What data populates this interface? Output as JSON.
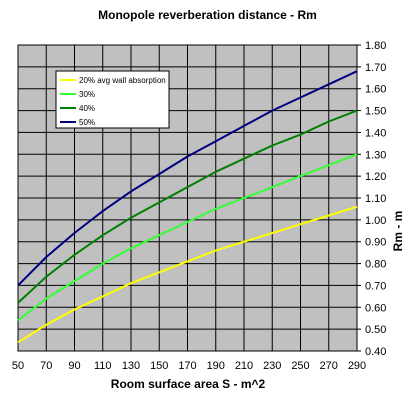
{
  "chart_data": {
    "type": "line",
    "title": "Monopole reverberation distance - Rm",
    "xlabel": "Room surface area S - m^2",
    "ylabel": "Rm - m",
    "x": [
      50,
      70,
      90,
      110,
      130,
      150,
      170,
      190,
      210,
      230,
      250,
      270,
      290
    ],
    "x_ticks": [
      "50",
      "70",
      "90",
      "110",
      "130",
      "150",
      "170",
      "190",
      "210",
      "230",
      "250",
      "270",
      "290"
    ],
    "y_ticks": [
      "0.40",
      "0.50",
      "0.60",
      "0.70",
      "0.80",
      "0.90",
      "1.00",
      "1.10",
      "1.20",
      "1.30",
      "1.40",
      "1.50",
      "1.60",
      "1.70",
      "1.80"
    ],
    "xlim": [
      50,
      290
    ],
    "ylim": [
      0.4,
      1.8
    ],
    "grid": true,
    "legend_position": "top-left",
    "series": [
      {
        "name": "20% avg wall absorption",
        "color": "#ffff00",
        "values": [
          0.44,
          0.52,
          0.59,
          0.65,
          0.71,
          0.76,
          0.81,
          0.86,
          0.9,
          0.94,
          0.98,
          1.02,
          1.06
        ]
      },
      {
        "name": "30%",
        "color": "#33ff33",
        "values": [
          0.54,
          0.64,
          0.72,
          0.8,
          0.87,
          0.93,
          0.99,
          1.05,
          1.1,
          1.15,
          1.2,
          1.25,
          1.3
        ]
      },
      {
        "name": "40%",
        "color": "#008000",
        "values": [
          0.62,
          0.74,
          0.84,
          0.93,
          1.01,
          1.08,
          1.15,
          1.22,
          1.28,
          1.34,
          1.39,
          1.45,
          1.5
        ]
      },
      {
        "name": "50%",
        "color": "#000080",
        "values": [
          0.7,
          0.83,
          0.94,
          1.04,
          1.13,
          1.21,
          1.29,
          1.36,
          1.43,
          1.5,
          1.56,
          1.62,
          1.68
        ]
      }
    ]
  }
}
